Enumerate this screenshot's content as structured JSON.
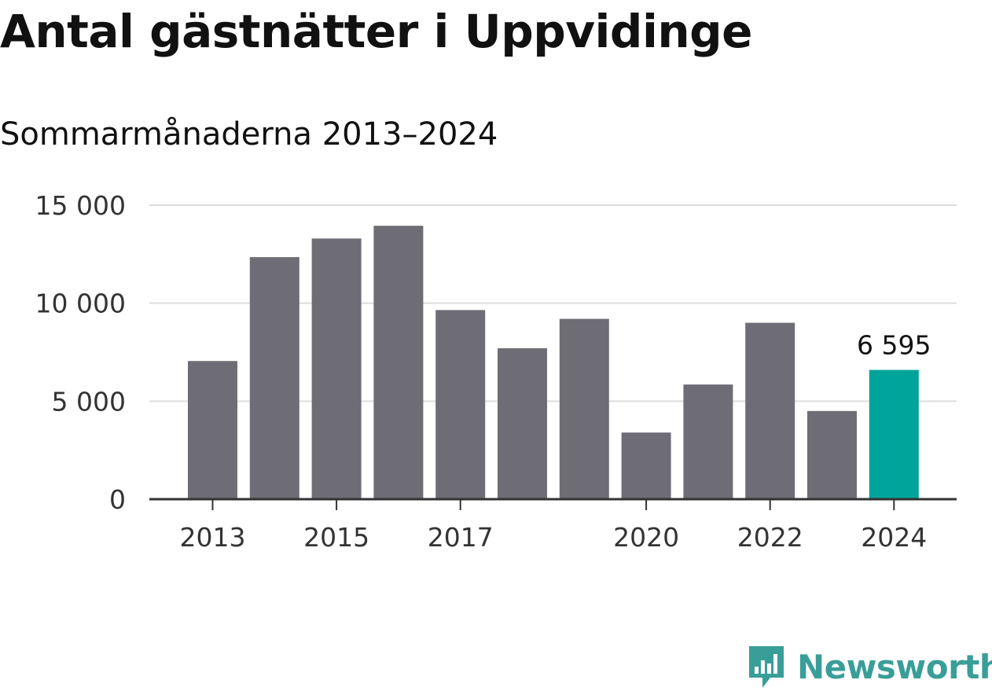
{
  "header": {
    "title": "Antal gästnätter i Uppvidinge",
    "subtitle": "Sommarmånaderna 2013–2024"
  },
  "brand": {
    "name": "Newsworthy",
    "color": "#3a9e98"
  },
  "colors": {
    "bar": "#6e6d75",
    "highlight": "#00a49a",
    "grid": "#dddddd",
    "axis": "#333333"
  },
  "chart_data": {
    "type": "bar",
    "title": "Antal gästnätter i Uppvidinge",
    "subtitle": "Sommarmånaderna 2013–2024",
    "categories": [
      "2013",
      "2014",
      "2015",
      "2016",
      "2017",
      "2018",
      "2019",
      "2020",
      "2021",
      "2022",
      "2023",
      "2024"
    ],
    "values": [
      7050,
      12350,
      13300,
      13950,
      9650,
      7700,
      9200,
      3400,
      5850,
      9000,
      4500,
      6595
    ],
    "x_tick_labels": [
      "2013",
      "2015",
      "2017",
      "2020",
      "2022",
      "2024"
    ],
    "y_ticks": [
      0,
      5000,
      10000,
      15000
    ],
    "y_tick_labels": [
      "0",
      "5 000",
      "10 000",
      "15 000"
    ],
    "ylim": [
      0,
      15000
    ],
    "grid": true,
    "highlight_index": 11,
    "highlight_label": "6 595"
  }
}
